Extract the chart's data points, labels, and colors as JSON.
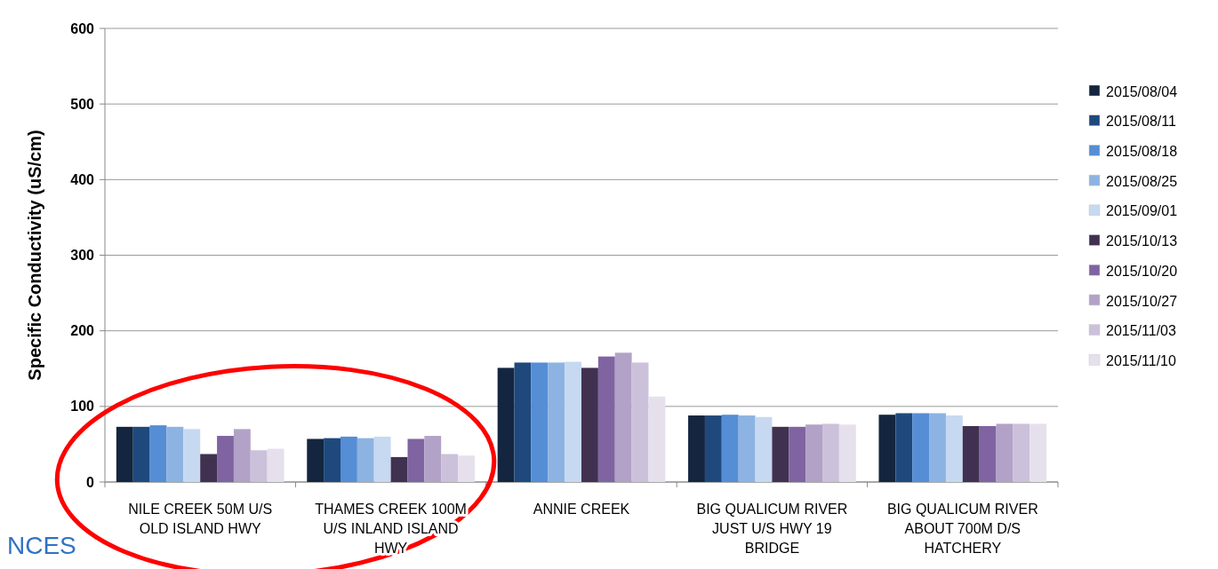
{
  "chart_data": {
    "type": "bar",
    "ylabel": "Specific Conductivity (uS/cm)",
    "categories": [
      "NILE CREEK 50M U/S OLD ISLAND HWY",
      "THAMES CREEK 100M U/S INLAND ISLAND HWY",
      "ANNIE CREEK",
      "BIG QUALICUM RIVER JUST U/S HWY 19 BRIDGE",
      "BIG QUALICUM RIVER ABOUT 700M D/S HATCHERY"
    ],
    "series": [
      {
        "name": "2015/08/04",
        "color": "#14253f",
        "values": [
          73,
          57,
          151,
          88,
          89
        ]
      },
      {
        "name": "2015/08/11",
        "color": "#1f497d",
        "values": [
          73,
          58,
          158,
          88,
          91
        ]
      },
      {
        "name": "2015/08/18",
        "color": "#558ed5",
        "values": [
          75,
          60,
          158,
          89,
          91
        ]
      },
      {
        "name": "2015/08/25",
        "color": "#8db3e2",
        "values": [
          73,
          58,
          158,
          88,
          91
        ]
      },
      {
        "name": "2015/09/01",
        "color": "#c6d9f1",
        "values": [
          70,
          60,
          159,
          86,
          88
        ]
      },
      {
        "name": "2015/10/13",
        "color": "#403151",
        "values": [
          37,
          33,
          151,
          73,
          74
        ]
      },
      {
        "name": "2015/10/20",
        "color": "#8064a2",
        "values": [
          61,
          57,
          166,
          73,
          74
        ]
      },
      {
        "name": "2015/10/27",
        "color": "#b3a2c7",
        "values": [
          70,
          61,
          171,
          76,
          77
        ]
      },
      {
        "name": "2015/11/03",
        "color": "#ccc1da",
        "values": [
          42,
          37,
          158,
          77,
          77
        ]
      },
      {
        "name": "2015/11/10",
        "color": "#e6e0ec",
        "values": [
          44,
          35,
          113,
          76,
          77
        ]
      }
    ],
    "ylim": [
      0,
      600
    ],
    "yticks": [
      0,
      100,
      200,
      300,
      400,
      500,
      600
    ],
    "grid": "y",
    "legend": "right",
    "annotations": [
      "NCES"
    ]
  }
}
